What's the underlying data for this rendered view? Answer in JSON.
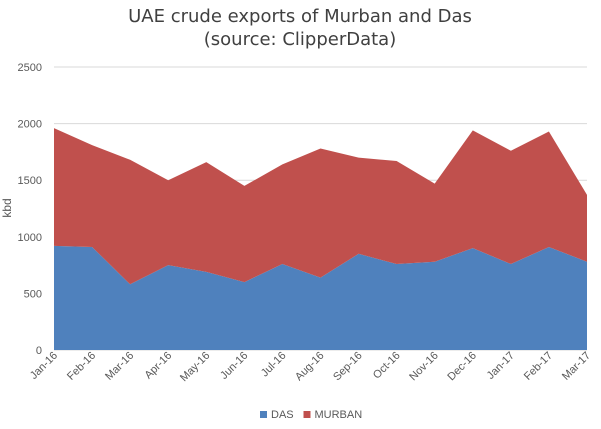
{
  "chart_data": {
    "type": "area",
    "stacked": true,
    "title": "UAE crude exports of Murban and Das",
    "subtitle": "(source: ClipperData)",
    "ylabel": "kbd",
    "xlabel": "",
    "ylim": [
      0,
      2500
    ],
    "yticks": [
      0,
      500,
      1000,
      1500,
      2000,
      2500
    ],
    "grid": true,
    "legend_position": "bottom",
    "categories": [
      "Jan-16",
      "Feb-16",
      "Mar-16",
      "Apr-16",
      "May-16",
      "Jun-16",
      "Jul-16",
      "Aug-16",
      "Sep-16",
      "Oct-16",
      "Nov-16",
      "Dec-16",
      "Jan-17",
      "Feb-17",
      "Mar-17"
    ],
    "series": [
      {
        "name": "DAS",
        "color": "#4f81bd",
        "values": [
          920,
          910,
          580,
          750,
          690,
          600,
          760,
          640,
          850,
          760,
          780,
          900,
          760,
          910,
          780
        ]
      },
      {
        "name": "MURBAN",
        "color": "#c0504d",
        "values": [
          1040,
          900,
          1100,
          750,
          970,
          850,
          880,
          1140,
          850,
          910,
          690,
          1040,
          1000,
          1020,
          590
        ]
      }
    ]
  }
}
